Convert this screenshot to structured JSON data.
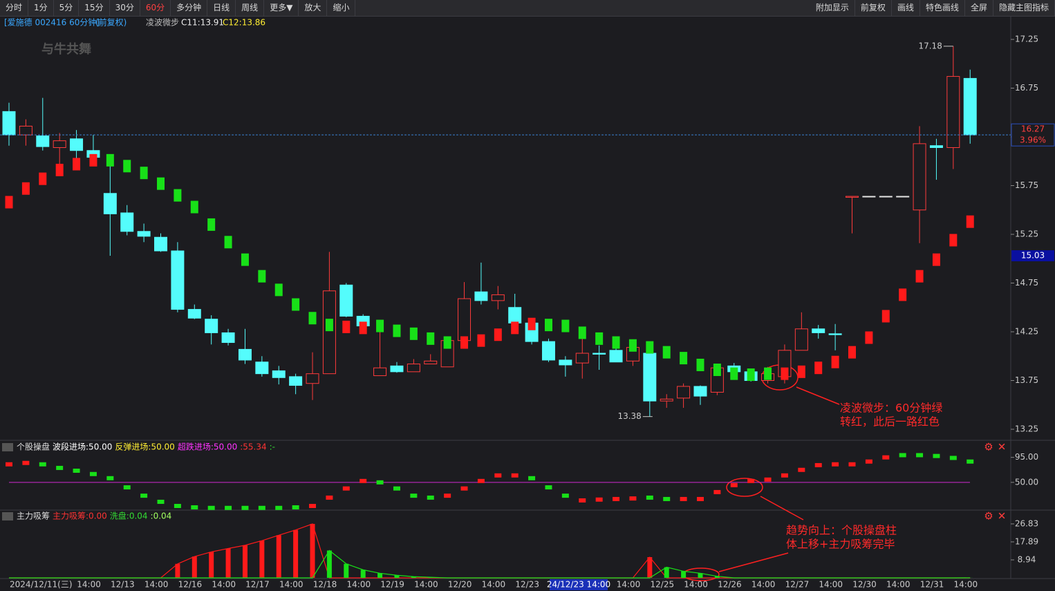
{
  "toolbar": {
    "left": [
      "分时",
      "1分",
      "5分",
      "15分",
      "30分",
      "60分",
      "多分钟",
      "日线",
      "周线",
      "更多▼",
      "放大",
      "缩小"
    ],
    "right": [
      "附加显示",
      "前复权",
      "画线",
      "特色画线",
      "全屏",
      "隐藏主图指标"
    ]
  },
  "header": {
    "stock": "[爱施德 002416 60分钟]",
    "adjust": "(前复权)",
    "c11": "C11:13.91",
    "c12": "C12:13.86"
  },
  "watermark": "与牛共舞",
  "chart_data": [
    {
      "type": "candlestick",
      "up_color": "#ff3b3b",
      "down_color": "#54fcfc",
      "flat_color": "#e6e6e6",
      "categories": [
        "2024/12/11(三)",
        null,
        null,
        null,
        "14:00",
        null,
        "12/13",
        null,
        "14:00",
        null,
        "12/16",
        null,
        "14:00",
        null,
        "12/17",
        null,
        "14:00",
        null,
        "12/18",
        null,
        "14:00",
        null,
        "12/19",
        null,
        "14:00",
        null,
        "12/20",
        null,
        "14:00",
        null,
        "12/23",
        null,
        null,
        null,
        null,
        null,
        "14:00",
        null,
        "12/25",
        null,
        "14:00",
        null,
        "12/26",
        null,
        "14:00",
        null,
        "12/27",
        null,
        "14:00",
        null,
        "12/30",
        null,
        "14:00",
        null,
        "12/31",
        null,
        "14:00",
        null
      ],
      "cursor_label": "24/12/23 14:00",
      "open": [
        16.51,
        16.27,
        16.26,
        16.14,
        16.23,
        16.11,
        15.67,
        15.47,
        15.28,
        15.22,
        15.08,
        14.48,
        14.38,
        14.24,
        14.07,
        13.94,
        13.85,
        13.79,
        13.72,
        13.82,
        14.73,
        14.41,
        13.8,
        13.9,
        13.84,
        13.92,
        13.89,
        14.16,
        14.66,
        14.57,
        14.5,
        14.34,
        14.15,
        13.96,
        13.93,
        14.03,
        14.06,
        13.95,
        14.03,
        13.54,
        13.57,
        13.69,
        13.63,
        13.9,
        13.84,
        13.75,
        13.79,
        14.06,
        14.28,
        14.23,
        15.63,
        15.64,
        15.64,
        15.64,
        15.5,
        16.16,
        16.14,
        16.85
      ],
      "high": [
        16.6,
        16.43,
        16.65,
        16.29,
        16.32,
        16.27,
        15.97,
        15.55,
        15.36,
        15.26,
        15.17,
        14.53,
        14.42,
        14.28,
        14.28,
        14.0,
        13.9,
        13.82,
        14.04,
        15.07,
        14.75,
        14.43,
        14.31,
        13.94,
        13.97,
        14.02,
        14.19,
        14.76,
        14.96,
        14.72,
        14.64,
        14.36,
        14.18,
        14.0,
        14.19,
        14.11,
        14.08,
        14.12,
        14.07,
        13.61,
        13.72,
        13.7,
        13.9,
        13.93,
        13.86,
        13.89,
        14.12,
        14.45,
        14.32,
        14.33,
        15.64,
        15.64,
        15.64,
        15.64,
        16.36,
        16.23,
        17.18,
        16.94
      ],
      "low": [
        16.16,
        16.16,
        16.11,
        15.95,
        16.0,
        16.01,
        15.03,
        15.24,
        15.17,
        15.07,
        14.45,
        14.38,
        14.12,
        14.11,
        13.92,
        13.79,
        13.71,
        13.61,
        13.55,
        13.82,
        14.4,
        14.26,
        13.8,
        13.83,
        13.84,
        13.92,
        13.89,
        14.13,
        14.53,
        14.48,
        14.32,
        14.12,
        13.94,
        13.79,
        13.77,
        13.86,
        13.94,
        13.9,
        13.38,
        13.47,
        13.47,
        13.5,
        13.6,
        13.79,
        13.74,
        13.72,
        13.72,
        14.06,
        14.18,
        14.06,
        15.26,
        15.64,
        15.64,
        15.64,
        15.16,
        15.81,
        15.92,
        16.18
      ],
      "close": [
        16.27,
        16.36,
        16.15,
        16.21,
        16.11,
        16.04,
        15.46,
        15.28,
        15.23,
        15.08,
        14.48,
        14.39,
        14.24,
        14.14,
        13.96,
        13.82,
        13.78,
        13.7,
        13.82,
        14.67,
        14.41,
        14.31,
        13.88,
        13.84,
        13.92,
        13.95,
        14.16,
        14.59,
        14.57,
        14.63,
        14.34,
        14.15,
        13.96,
        13.91,
        14.03,
        14.02,
        13.94,
        14.09,
        13.54,
        13.56,
        13.69,
        13.59,
        13.88,
        13.84,
        13.75,
        13.82,
        14.06,
        14.28,
        14.24,
        14.22,
        15.64,
        15.64,
        15.64,
        15.64,
        16.18,
        16.14,
        16.87,
        16.27
      ],
      "overlay": {
        "name": "凌波微步",
        "values": [
          15.58,
          15.72,
          15.82,
          15.91,
          15.97,
          16.01,
          16.01,
          15.95,
          15.88,
          15.77,
          15.65,
          15.53,
          15.35,
          15.17,
          14.99,
          14.82,
          14.68,
          14.53,
          14.39,
          14.32,
          14.3,
          14.29,
          14.31,
          14.26,
          14.23,
          14.18,
          14.14,
          14.14,
          14.16,
          14.22,
          14.29,
          14.33,
          14.32,
          14.31,
          14.24,
          14.18,
          14.14,
          14.11,
          14.09,
          14.04,
          13.98,
          13.91,
          13.86,
          13.82,
          13.81,
          13.82,
          13.82,
          13.84,
          13.88,
          13.94,
          14.04,
          14.19,
          14.41,
          14.63,
          14.82,
          14.99,
          15.19,
          15.38
        ],
        "colors": [
          "#ff1a1a",
          "#ff1a1a",
          "#ff1a1a",
          "#ff1a1a",
          "#ff1a1a",
          "#ff1a1a",
          "#18e018",
          "#18e018",
          "#18e018",
          "#18e018",
          "#18e018",
          "#18e018",
          "#18e018",
          "#18e018",
          "#18e018",
          "#18e018",
          "#18e018",
          "#18e018",
          "#18e018",
          "#18e018",
          "#ff1a1a",
          "#ff1a1a",
          "#18e018",
          "#18e018",
          "#18e018",
          "#18e018",
          "#18e018",
          "#ff1a1a",
          "#ff1a1a",
          "#ff1a1a",
          "#ff1a1a",
          "#ff1a1a",
          "#18e018",
          "#18e018",
          "#18e018",
          "#18e018",
          "#18e018",
          "#18e018",
          "#18e018",
          "#18e018",
          "#18e018",
          "#18e018",
          "#18e018",
          "#18e018",
          "#18e018",
          "#18e018",
          "#ff1a1a",
          "#ff1a1a",
          "#ff1a1a",
          "#ff1a1a",
          "#ff1a1a",
          "#ff1a1a",
          "#ff1a1a",
          "#ff1a1a",
          "#ff1a1a",
          "#ff1a1a",
          "#ff1a1a",
          "#ff1a1a"
        ]
      },
      "last_price": 16.27,
      "change_label": "3.96%",
      "marker_price": 15.03,
      "ylim": [
        13.165,
        17.484
      ],
      "yticks": [
        13.25,
        13.75,
        14.25,
        14.75,
        15.25,
        15.75,
        16.25,
        16.75,
        17.25
      ],
      "notes": [
        [
          "凌波微步：60分钟绿",
          "转红，此后一路红色"
        ],
        [
          "趋势向上：个股操盘柱",
          "体上移+主力吸筹完毕"
        ]
      ]
    },
    {
      "type": "dot",
      "title": "个股操盘",
      "legend": [
        "波段进场:50.00",
        "反弹进场:50.00",
        "超跌进场:50.00",
        ":55.34",
        ":-"
      ],
      "ref_line": 50,
      "values": [
        82.5,
        85,
        82.5,
        76,
        71,
        65,
        57.5,
        41,
        26,
        15,
        7.5,
        5,
        4,
        4,
        4,
        4,
        4,
        5,
        7.5,
        22.5,
        39,
        52.5,
        50,
        39,
        26,
        22.5,
        26,
        39,
        52.5,
        62.5,
        62.5,
        57.5,
        41,
        26,
        17.5,
        19,
        20,
        21,
        22.5,
        20,
        20,
        20,
        32.5,
        45,
        52.5,
        55,
        62.5,
        72.5,
        81,
        82.5,
        82.5,
        87.5,
        95,
        99,
        99,
        97.5,
        94,
        87.5
      ],
      "colors": [
        "#ff1a1a",
        "#ff1a1a",
        "#18e018",
        "#18e018",
        "#18e018",
        "#18e018",
        "#18e018",
        "#18e018",
        "#18e018",
        "#18e018",
        "#18e018",
        "#18e018",
        "#18e018",
        "#18e018",
        "#18e018",
        "#18e018",
        "#18e018",
        "#18e018",
        "#ff1a1a",
        "#ff1a1a",
        "#ff1a1a",
        "#ff1a1a",
        "#18e018",
        "#18e018",
        "#18e018",
        "#18e018",
        "#ff1a1a",
        "#ff1a1a",
        "#ff1a1a",
        "#ff1a1a",
        "#ff1a1a",
        "#18e018",
        "#18e018",
        "#18e018",
        "#ff1a1a",
        "#ff1a1a",
        "#ff1a1a",
        "#ff1a1a",
        "#18e018",
        "#18e018",
        "#ff1a1a",
        "#ff1a1a",
        "#ff1a1a",
        "#ff1a1a",
        "#ff1a1a",
        "#ff1a1a",
        "#ff1a1a",
        "#ff1a1a",
        "#ff1a1a",
        "#ff1a1a",
        "#ff1a1a",
        "#ff1a1a",
        "#ff1a1a",
        "#18e018",
        "#18e018",
        "#18e018",
        "#18e018",
        "#18e018"
      ],
      "ylim": [
        0,
        122
      ],
      "yticks": [
        {
          "value": 50,
          "label": "50.00"
        },
        {
          "value": 95,
          "label": "95.00"
        }
      ]
    },
    {
      "type": "bar",
      "title": "主力吸筹",
      "legend": [
        "主力吸筹:0.00",
        "洗盘:0.04",
        ":0.04"
      ],
      "series": [
        {
          "color": "#ff1a1a",
          "values": [
            0,
            0,
            0,
            0,
            0,
            0,
            0,
            0,
            0,
            0,
            6.95,
            10.6,
            12.9,
            14.6,
            16.2,
            18.5,
            21.2,
            23.8,
            26.83,
            0,
            0,
            0,
            0,
            0,
            0,
            0,
            0,
            0,
            0,
            0,
            0,
            0,
            0,
            0,
            0,
            0,
            0,
            0,
            10.3,
            0,
            0,
            0,
            0,
            0,
            0,
            0,
            0,
            0,
            0,
            0,
            0,
            0,
            0,
            0,
            0,
            0,
            0,
            0
          ]
        },
        {
          "color": "#18e018",
          "values": [
            0,
            0,
            0,
            0,
            0,
            0,
            0,
            0,
            0,
            0,
            0,
            0,
            0,
            0,
            0,
            0,
            0,
            0,
            0,
            13.6,
            7,
            4,
            2.3,
            1.3,
            0.6,
            0.3,
            0,
            0,
            0,
            0,
            0,
            0,
            0,
            0,
            0,
            0,
            0,
            0,
            0,
            5.3,
            3.3,
            2.3,
            0.8,
            0,
            0,
            0,
            0,
            0,
            0,
            0,
            0,
            0,
            0,
            0,
            0,
            0,
            0,
            0.04
          ]
        }
      ],
      "ylim": [
        0,
        32.3
      ],
      "yticks": [
        8.94,
        17.89,
        26.83
      ]
    }
  ]
}
